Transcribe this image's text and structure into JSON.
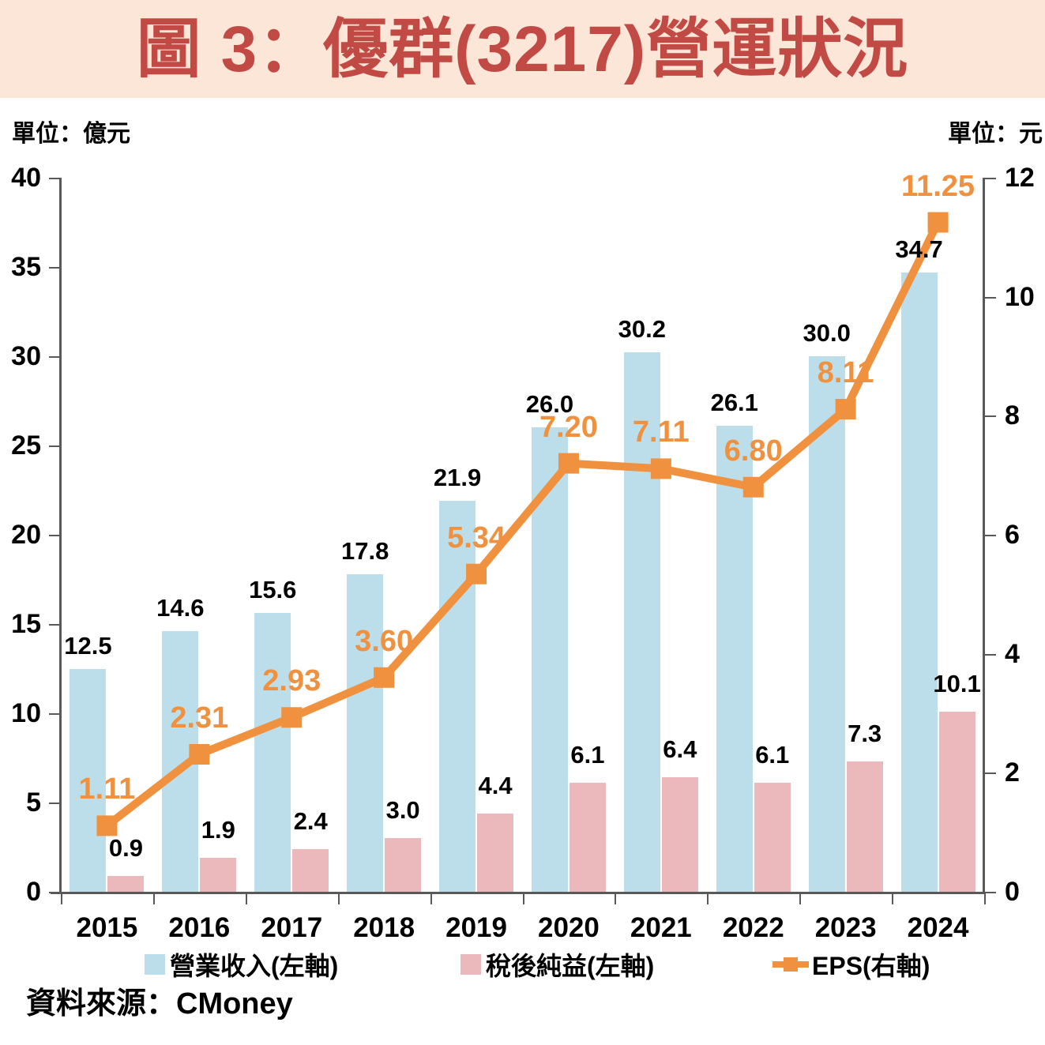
{
  "header": {
    "title": "圖 3：優群(3217)營運狀況"
  },
  "units": {
    "left": "單位：億元",
    "right": "單位：元"
  },
  "source": "資料來源：CMoney",
  "legend": {
    "items": [
      {
        "label": "營業收入(左軸)"
      },
      {
        "label": "稅後純益(左軸)"
      },
      {
        "label": "EPS(右軸)"
      }
    ]
  },
  "colors": {
    "revenue_bar": "#bcdeeb",
    "net_income_bar": "#ebb8bc",
    "eps_line": "#ef913f",
    "title_red": "#c24a44",
    "band_bg": "#fbe6d8",
    "axis_gray": "#595959",
    "label_black": "#000000"
  },
  "chart_data": {
    "type": "bar+line",
    "categories": [
      "2015",
      "2016",
      "2017",
      "2018",
      "2019",
      "2020",
      "2021",
      "2022",
      "2023",
      "2024"
    ],
    "series": [
      {
        "name": "營業收入(左軸)",
        "type": "bar",
        "axis": "left",
        "decimals": 1,
        "values": [
          12.5,
          14.6,
          15.6,
          17.8,
          21.9,
          26.0,
          30.2,
          26.1,
          30.0,
          34.7
        ]
      },
      {
        "name": "稅後純益(左軸)",
        "type": "bar",
        "axis": "left",
        "decimals": 1,
        "values": [
          0.9,
          1.9,
          2.4,
          3.0,
          4.4,
          6.1,
          6.4,
          6.1,
          7.3,
          10.1
        ]
      },
      {
        "name": "EPS(右軸)",
        "type": "line",
        "axis": "right",
        "decimals": 2,
        "values": [
          1.11,
          2.31,
          2.93,
          3.6,
          5.34,
          7.2,
          7.11,
          6.8,
          8.11,
          11.25
        ]
      }
    ],
    "left_axis": {
      "label": "單位：億元",
      "min": 0,
      "max": 40,
      "step": 5,
      "tick_labels": [
        "0",
        "5",
        "10",
        "15",
        "20",
        "25",
        "30",
        "35",
        "40"
      ]
    },
    "right_axis": {
      "label": "單位：元",
      "min": 0,
      "max": 12,
      "step": 2,
      "tick_labels": [
        "0",
        "2",
        "4",
        "6",
        "8",
        "10",
        "12"
      ]
    },
    "grid": false,
    "legend_position": "bottom"
  }
}
